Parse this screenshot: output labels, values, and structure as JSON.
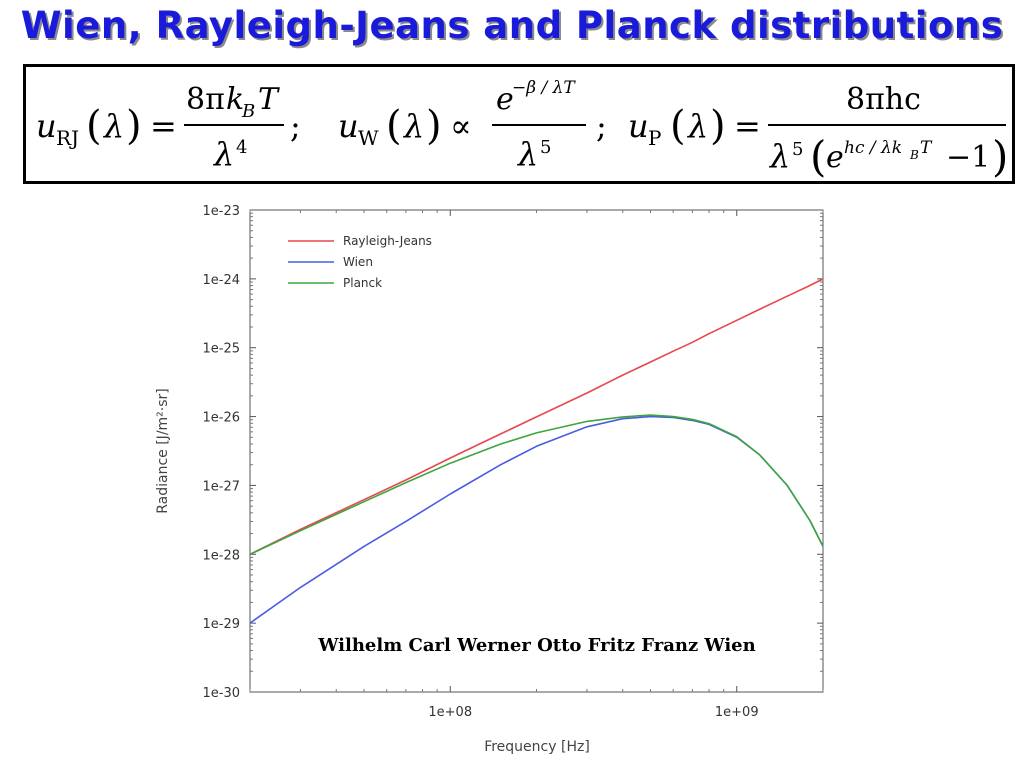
{
  "slide": {
    "title": "Wien, Rayleigh-Jeans and Planck distributions",
    "title_color": "#1a1adb",
    "caption": "Wilhelm Carl Werner Otto Fritz Franz Wien"
  },
  "formulas": {
    "rj": {
      "u": "u",
      "sub": "RJ",
      "arg": "λ",
      "rel": "=",
      "num_a": "8π",
      "num_b": "k",
      "num_sub": "B",
      "num_c": "T",
      "den": "λ",
      "den_exp": "4",
      "sep": ";"
    },
    "wien": {
      "u": "u",
      "sub": "W",
      "arg": "λ",
      "rel": "∝",
      "num": "e",
      "num_exp": "−β / λT",
      "den": "λ",
      "den_exp": "5",
      "sep": ";"
    },
    "planck": {
      "u": "u",
      "sub": "P",
      "arg": "λ",
      "rel": "=",
      "num": "8πhc",
      "den": "λ",
      "den_exp": "5",
      "den_e": "e",
      "den_e_exp": "hc / λk",
      "den_e_sub": "B",
      "den_e_T": "T",
      "den_tail": "−1"
    }
  },
  "chart_data": {
    "type": "line",
    "title": "",
    "xlabel": "Frequency [Hz]",
    "ylabel": "Radiance [J/m²·sr]",
    "xscale": "log",
    "yscale": "log",
    "xlim": [
      20000000.0,
      2000000000.0
    ],
    "ylim": [
      1e-30,
      1e-23
    ],
    "grid": false,
    "legend_position": "top-left",
    "x_ticks": [
      {
        "value": 100000000.0,
        "label": "1e+08"
      },
      {
        "value": 1000000000.0,
        "label": "1e+09"
      }
    ],
    "y_ticks": [
      {
        "value": 1e-23,
        "label": "1e-23"
      },
      {
        "value": 1e-24,
        "label": "1e-24"
      },
      {
        "value": 1e-25,
        "label": "1e-25"
      },
      {
        "value": 1e-26,
        "label": "1e-26"
      },
      {
        "value": 1e-27,
        "label": "1e-27"
      },
      {
        "value": 1e-28,
        "label": "1e-28"
      },
      {
        "value": 1e-29,
        "label": "1e-29"
      },
      {
        "value": 1e-30,
        "label": "1e-30"
      }
    ],
    "x": [
      20000000.0,
      30000000.0,
      50000000.0,
      70000000.0,
      100000000.0,
      150000000.0,
      200000000.0,
      300000000.0,
      400000000.0,
      500000000.0,
      600000000.0,
      700000000.0,
      800000000.0,
      1000000000.0,
      1200000000.0,
      1500000000.0,
      1800000000.0,
      2000000000.0
    ],
    "series": [
      {
        "name": "Rayleigh-Jeans",
        "color": "#e8474f",
        "values": [
          1e-28,
          2.3e-28,
          6.2e-28,
          1.2e-27,
          2.5e-27,
          5.6e-27,
          9.9e-27,
          2.2e-26,
          4e-26,
          6.2e-26,
          8.9e-26,
          1.2e-25,
          1.6e-25,
          2.5e-25,
          3.6e-25,
          5.6e-25,
          8e-25,
          1e-24
        ]
      },
      {
        "name": "Wien",
        "color": "#4a5ce0",
        "values": [
          1e-29,
          3.3e-29,
          1.3e-28,
          3e-28,
          7.5e-28,
          2e-27,
          3.7e-27,
          7.1e-27,
          9.3e-27,
          1e-26,
          9.7e-27,
          8.8e-27,
          7.7e-27,
          5e-27,
          2.8e-27,
          1e-27,
          3.1e-28,
          1.3e-28
        ]
      },
      {
        "name": "Planck",
        "color": "#3ea63e",
        "values": [
          1e-28,
          2.2e-28,
          5.8e-28,
          1.1e-27,
          2.1e-27,
          4e-27,
          5.8e-27,
          8.5e-27,
          9.9e-27,
          1.05e-26,
          1e-26,
          9.1e-27,
          7.9e-27,
          5.1e-27,
          2.8e-27,
          1e-27,
          3.1e-28,
          1.3e-28
        ]
      }
    ]
  }
}
